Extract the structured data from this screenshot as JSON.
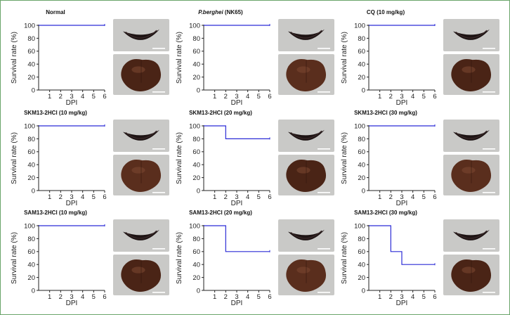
{
  "colors": {
    "line": "#2b2bd6",
    "axis": "#222222",
    "frame": "#6aa56a",
    "photo_bg": "#c9c9c7"
  },
  "chart_data": [
    {
      "id": "normal",
      "type": "line",
      "step": true,
      "title": "Normal",
      "x": [
        0,
        1,
        2,
        3,
        4,
        5,
        6
      ],
      "y": [
        100,
        100,
        100,
        100,
        100,
        100,
        100
      ],
      "xlabel": "DPI",
      "ylabel": "Survival rate (%)",
      "xticks": [
        "1",
        "2",
        "3",
        "4",
        "5",
        "6"
      ],
      "yticks": [
        "0",
        "20",
        "40",
        "60",
        "80",
        "100"
      ],
      "xlim": [
        0,
        6
      ],
      "ylim": [
        0,
        100
      ]
    },
    {
      "id": "pberghei",
      "type": "line",
      "step": true,
      "title_italic": "P.berghei",
      "title_rest": " (NK65)",
      "x": [
        0,
        1,
        2,
        3,
        4,
        5,
        6
      ],
      "y": [
        100,
        100,
        100,
        100,
        100,
        100,
        100
      ],
      "xlabel": "DPI",
      "ylabel": "Survival rate (%)",
      "xticks": [
        "1",
        "2",
        "3",
        "4",
        "5",
        "6"
      ],
      "yticks": [
        "0",
        "20",
        "40",
        "60",
        "80",
        "100"
      ],
      "xlim": [
        0,
        6
      ],
      "ylim": [
        0,
        100
      ]
    },
    {
      "id": "cq",
      "type": "line",
      "step": true,
      "title": "CQ (10 mg/kg)",
      "x": [
        0,
        1,
        2,
        3,
        4,
        5,
        6
      ],
      "y": [
        100,
        100,
        100,
        100,
        100,
        100,
        100
      ],
      "xlabel": "DPI",
      "ylabel": "Survival rate (%)",
      "xticks": [
        "1",
        "2",
        "3",
        "4",
        "5",
        "6"
      ],
      "yticks": [
        "0",
        "20",
        "40",
        "60",
        "80",
        "100"
      ],
      "xlim": [
        0,
        6
      ],
      "ylim": [
        0,
        100
      ]
    },
    {
      "id": "skm10",
      "type": "line",
      "step": true,
      "title": "SKM13-2HCl (10 mg/kg)",
      "x": [
        0,
        1,
        2,
        3,
        4,
        5,
        6
      ],
      "y": [
        100,
        100,
        100,
        100,
        100,
        100,
        100
      ],
      "xlabel": "DPI",
      "ylabel": "Survival rate (%)",
      "xticks": [
        "1",
        "2",
        "3",
        "4",
        "5",
        "6"
      ],
      "yticks": [
        "0",
        "20",
        "40",
        "60",
        "80",
        "100"
      ],
      "xlim": [
        0,
        6
      ],
      "ylim": [
        0,
        100
      ]
    },
    {
      "id": "skm20",
      "type": "line",
      "step": true,
      "title": "SKM13-2HCl (20 mg/kg)",
      "x": [
        0,
        1,
        2,
        3,
        4,
        5,
        6
      ],
      "y": [
        100,
        100,
        80,
        80,
        80,
        80,
        80
      ],
      "xlabel": "DPI",
      "ylabel": "Survival rate (%)",
      "xticks": [
        "1",
        "2",
        "3",
        "4",
        "5",
        "6"
      ],
      "yticks": [
        "0",
        "20",
        "40",
        "60",
        "80",
        "100"
      ],
      "xlim": [
        0,
        6
      ],
      "ylim": [
        0,
        100
      ]
    },
    {
      "id": "skm30",
      "type": "line",
      "step": true,
      "title": "SKM13-2HCl (30 mg/kg)",
      "x": [
        0,
        1,
        2,
        3,
        4,
        5,
        6
      ],
      "y": [
        100,
        100,
        100,
        100,
        100,
        100,
        100
      ],
      "xlabel": "DPI",
      "ylabel": "Survival rate (%)",
      "xticks": [
        "1",
        "2",
        "3",
        "4",
        "5",
        "6"
      ],
      "yticks": [
        "0",
        "20",
        "40",
        "60",
        "80",
        "100"
      ],
      "xlim": [
        0,
        6
      ],
      "ylim": [
        0,
        100
      ]
    },
    {
      "id": "sam10",
      "type": "line",
      "step": true,
      "title": "SAM13-2HCl (10 mg/kg)",
      "x": [
        0,
        1,
        2,
        3,
        4,
        5,
        6
      ],
      "y": [
        100,
        100,
        100,
        100,
        100,
        100,
        100
      ],
      "xlabel": "DPI",
      "ylabel": "Survival rate (%)",
      "xticks": [
        "1",
        "2",
        "3",
        "4",
        "5",
        "6"
      ],
      "yticks": [
        "0",
        "20",
        "40",
        "60",
        "80",
        "100"
      ],
      "xlim": [
        0,
        6
      ],
      "ylim": [
        0,
        100
      ]
    },
    {
      "id": "sam20",
      "type": "line",
      "step": true,
      "title": "SAM13-2HCl (20 mg/kg)",
      "x": [
        0,
        1,
        2,
        3,
        4,
        5,
        6
      ],
      "y": [
        100,
        100,
        60,
        60,
        60,
        60,
        60
      ],
      "xlabel": "DPI",
      "ylabel": "Survival rate (%)",
      "xticks": [
        "1",
        "2",
        "3",
        "4",
        "5",
        "6"
      ],
      "yticks": [
        "0",
        "20",
        "40",
        "60",
        "80",
        "100"
      ],
      "xlim": [
        0,
        6
      ],
      "ylim": [
        0,
        100
      ]
    },
    {
      "id": "sam30",
      "type": "line",
      "step": true,
      "title": "SAM13-2HCl (30 mg/kg)",
      "x": [
        0,
        1,
        2,
        3,
        4,
        5,
        6
      ],
      "y": [
        100,
        100,
        60,
        40,
        40,
        40,
        40
      ],
      "xlabel": "DPI",
      "ylabel": "Survival rate (%)",
      "xticks": [
        "1",
        "2",
        "3",
        "4",
        "5",
        "6"
      ],
      "yticks": [
        "0",
        "20",
        "40",
        "60",
        "80",
        "100"
      ],
      "xlim": [
        0,
        6
      ],
      "ylim": [
        0,
        100
      ]
    }
  ]
}
